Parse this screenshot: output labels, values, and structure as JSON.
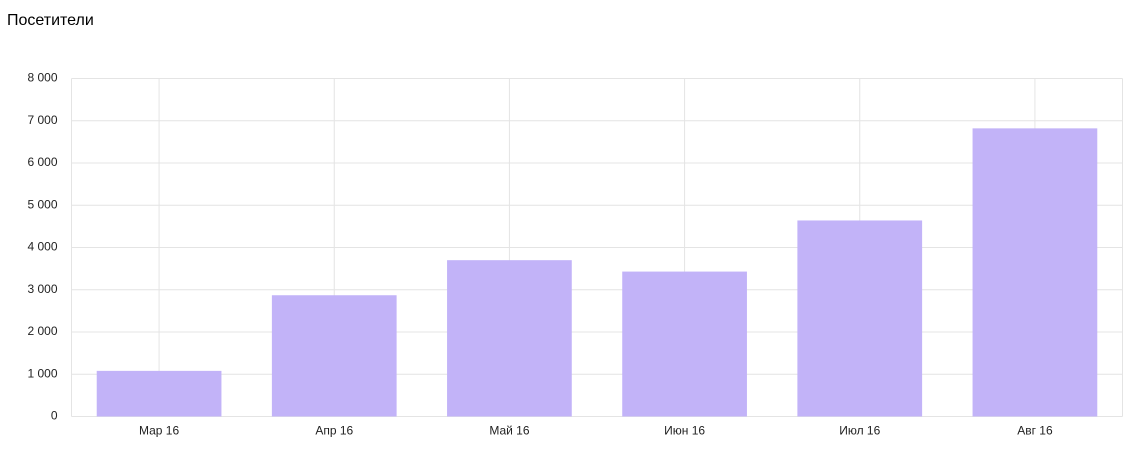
{
  "chart_data": {
    "type": "bar",
    "title": "Посетители",
    "categories": [
      "Мар 16",
      "Апр 16",
      "Май 16",
      "Июн 16",
      "Июл 16",
      "Авг 16"
    ],
    "values": [
      1080,
      2870,
      3700,
      3430,
      4640,
      6820
    ],
    "color": "#c2b3f8",
    "ylim": [
      0,
      8000
    ],
    "yticks": [
      0,
      {
        "value": 1000,
        "label": "1 000"
      },
      {
        "value": 2000,
        "label": "2 000"
      },
      {
        "value": 3000,
        "label": "3 000"
      },
      {
        "value": 4000,
        "label": "4 000"
      },
      {
        "value": 5000,
        "label": "5 000"
      },
      {
        "value": 6000,
        "label": "6 000"
      },
      {
        "value": 7000,
        "label": "7 000"
      },
      {
        "value": 8000,
        "label": "8 000"
      }
    ],
    "grid": true
  }
}
